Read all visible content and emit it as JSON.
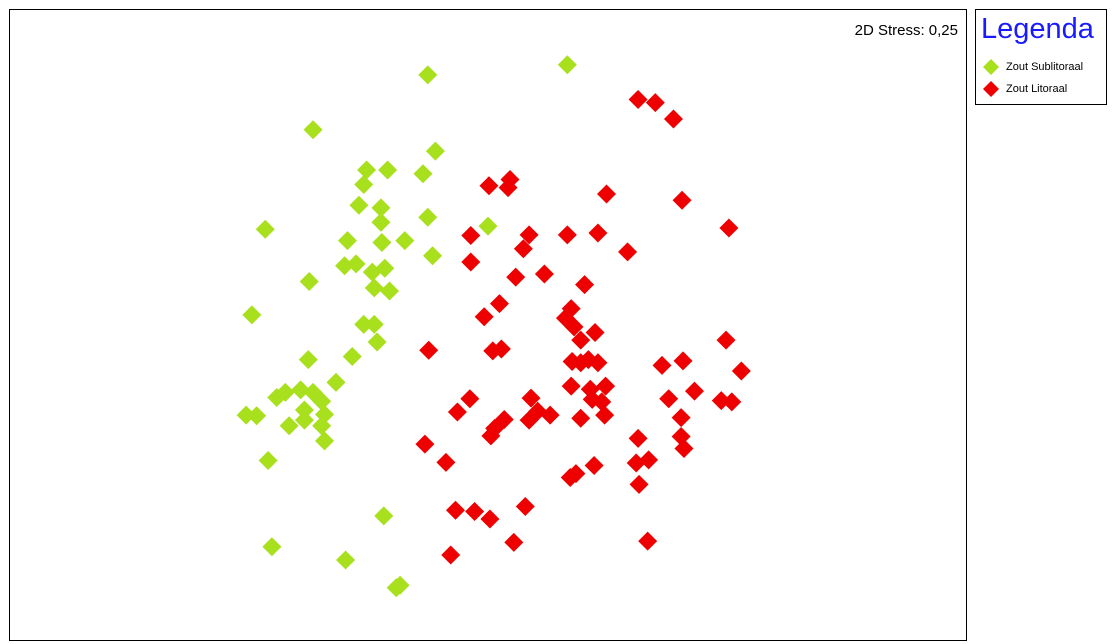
{
  "chart_data": {
    "type": "scatter",
    "title": "",
    "xlabel": "",
    "ylabel": "",
    "annotation": "2D Stress: 0,25",
    "grid": false,
    "legend": {
      "title": "Legenda",
      "placement": "right",
      "title_color": "#1a1aff"
    },
    "xlim": [
      0,
      100
    ],
    "ylim": [
      0,
      100
    ],
    "series": [
      {
        "name": "Zout Sublitoraal",
        "color": "#a8e01e",
        "marker": "diamond",
        "points": [
          [
            43.7,
            89.7
          ],
          [
            58.3,
            91.3
          ],
          [
            31.7,
            81.0
          ],
          [
            44.5,
            77.6
          ],
          [
            37.3,
            74.6
          ],
          [
            39.5,
            74.6
          ],
          [
            43.2,
            74.0
          ],
          [
            37.0,
            72.3
          ],
          [
            36.5,
            69.0
          ],
          [
            38.8,
            68.6
          ],
          [
            43.7,
            67.1
          ],
          [
            38.8,
            66.3
          ],
          [
            50.0,
            65.7
          ],
          [
            26.7,
            65.2
          ],
          [
            35.3,
            63.4
          ],
          [
            38.9,
            63.1
          ],
          [
            41.3,
            63.4
          ],
          [
            44.2,
            61.0
          ],
          [
            36.2,
            59.7
          ],
          [
            35.0,
            59.4
          ],
          [
            39.2,
            59.0
          ],
          [
            37.9,
            58.4
          ],
          [
            31.3,
            56.9
          ],
          [
            38.1,
            55.9
          ],
          [
            39.7,
            55.4
          ],
          [
            25.3,
            51.6
          ],
          [
            37.0,
            50.1
          ],
          [
            38.1,
            50.1
          ],
          [
            38.4,
            47.3
          ],
          [
            35.8,
            45.0
          ],
          [
            31.2,
            44.5
          ],
          [
            34.1,
            40.9
          ],
          [
            28.8,
            39.3
          ],
          [
            30.4,
            39.7
          ],
          [
            31.7,
            39.3
          ],
          [
            27.9,
            38.5
          ],
          [
            32.6,
            37.9
          ],
          [
            30.8,
            36.5
          ],
          [
            24.7,
            35.7
          ],
          [
            25.8,
            35.6
          ],
          [
            32.9,
            35.8
          ],
          [
            30.8,
            34.9
          ],
          [
            29.2,
            34.0
          ],
          [
            32.6,
            34.0
          ],
          [
            32.9,
            31.6
          ],
          [
            27.0,
            28.5
          ],
          [
            39.1,
            19.7
          ],
          [
            27.4,
            14.8
          ],
          [
            35.1,
            12.7
          ],
          [
            40.8,
            8.7
          ],
          [
            40.4,
            8.3
          ]
        ]
      },
      {
        "name": "Zout Litoraal",
        "color": "#ee0000",
        "marker": "diamond",
        "points": [
          [
            65.7,
            85.8
          ],
          [
            67.5,
            85.3
          ],
          [
            69.4,
            82.7
          ],
          [
            52.3,
            73.1
          ],
          [
            50.1,
            72.1
          ],
          [
            52.1,
            71.8
          ],
          [
            62.4,
            70.8
          ],
          [
            70.3,
            69.8
          ],
          [
            75.2,
            65.4
          ],
          [
            48.2,
            64.2
          ],
          [
            54.3,
            64.3
          ],
          [
            58.3,
            64.3
          ],
          [
            61.5,
            64.6
          ],
          [
            53.7,
            62.1
          ],
          [
            64.6,
            61.6
          ],
          [
            48.2,
            60.0
          ],
          [
            55.9,
            58.1
          ],
          [
            52.9,
            57.6
          ],
          [
            60.1,
            56.4
          ],
          [
            51.2,
            53.4
          ],
          [
            58.7,
            52.6
          ],
          [
            49.6,
            51.3
          ],
          [
            58.1,
            51.1
          ],
          [
            59.0,
            49.7
          ],
          [
            61.2,
            48.8
          ],
          [
            59.7,
            47.6
          ],
          [
            74.9,
            47.6
          ],
          [
            43.8,
            46.0
          ],
          [
            50.5,
            45.9
          ],
          [
            51.4,
            46.2
          ],
          [
            58.8,
            44.2
          ],
          [
            59.7,
            44.0
          ],
          [
            60.5,
            44.5
          ],
          [
            61.5,
            44.0
          ],
          [
            68.2,
            43.6
          ],
          [
            70.4,
            44.3
          ],
          [
            76.5,
            42.7
          ],
          [
            58.7,
            40.3
          ],
          [
            60.7,
            39.8
          ],
          [
            62.3,
            40.3
          ],
          [
            71.6,
            39.5
          ],
          [
            48.1,
            38.3
          ],
          [
            54.5,
            38.4
          ],
          [
            60.9,
            38.2
          ],
          [
            61.9,
            37.8
          ],
          [
            68.9,
            38.3
          ],
          [
            74.4,
            38.0
          ],
          [
            75.5,
            37.8
          ],
          [
            46.8,
            36.2
          ],
          [
            55.2,
            36.3
          ],
          [
            56.5,
            35.7
          ],
          [
            51.7,
            35.0
          ],
          [
            54.3,
            34.9
          ],
          [
            59.7,
            35.2
          ],
          [
            62.2,
            35.7
          ],
          [
            70.2,
            35.3
          ],
          [
            50.7,
            33.6
          ],
          [
            50.3,
            32.4
          ],
          [
            65.7,
            32.0
          ],
          [
            70.2,
            32.3
          ],
          [
            43.4,
            31.1
          ],
          [
            70.5,
            30.4
          ],
          [
            45.6,
            28.2
          ],
          [
            61.1,
            27.7
          ],
          [
            65.5,
            28.1
          ],
          [
            66.8,
            28.6
          ],
          [
            59.2,
            26.4
          ],
          [
            58.6,
            25.8
          ],
          [
            65.8,
            24.7
          ],
          [
            46.6,
            20.6
          ],
          [
            48.6,
            20.4
          ],
          [
            50.2,
            19.2
          ],
          [
            53.9,
            21.2
          ],
          [
            66.7,
            15.7
          ],
          [
            52.7,
            15.5
          ],
          [
            46.1,
            13.5
          ]
        ]
      }
    ]
  }
}
